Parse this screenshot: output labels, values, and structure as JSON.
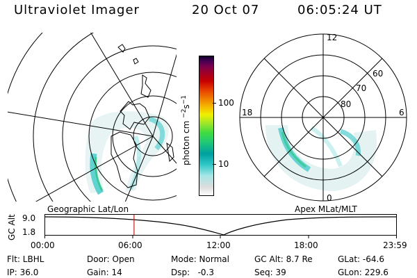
{
  "header": {
    "instrument": "Ultraviolet Imager",
    "date": "20 Oct 07",
    "time": "06:05:24 UT"
  },
  "left_panel": {
    "label": "Geographic Lat/Lon"
  },
  "right_panel": {
    "label": "Apex MLat/MLT",
    "hour_labels": [
      "12",
      "18",
      "6",
      "0"
    ],
    "lat_labels": [
      "60",
      "70",
      "80"
    ]
  },
  "colorbar": {
    "unit_label": "photon cm",
    "unit_sup1": "−2",
    "unit_s": "s",
    "unit_sup2": "−1",
    "tick_100": "100",
    "tick_10": "10",
    "colors": [
      "#ffffff",
      "#dcdcdc",
      "#a8e6e6",
      "#30c8c8",
      "#00a0a0",
      "#20c878",
      "#40dc40",
      "#a0e628",
      "#f0f000",
      "#f5b400",
      "#f07800",
      "#e63c00",
      "#c80000",
      "#a00028",
      "#780050",
      "#400050",
      "#100028"
    ]
  },
  "timeline": {
    "axis_label": "GC Alt",
    "y_ticks": [
      "9.0",
      "1.8"
    ],
    "x_ticks": [
      "00:00",
      "06:00",
      "12:00",
      "18:00",
      "23:59"
    ],
    "marker_time_fraction": 0.2537
  },
  "footer": {
    "filter": "Flt: LBHL",
    "ip": "IP: 36.0",
    "door": "Door: Open",
    "gain": "Gain: 14",
    "mode": "Mode: Normal",
    "dsp": "Dsp:   -0.3",
    "gc_alt": "GC Alt: 8.7 Re",
    "seq": "Seq: 39",
    "glat": "GLat: -64.6",
    "glon": "GLon: 229.6"
  }
}
